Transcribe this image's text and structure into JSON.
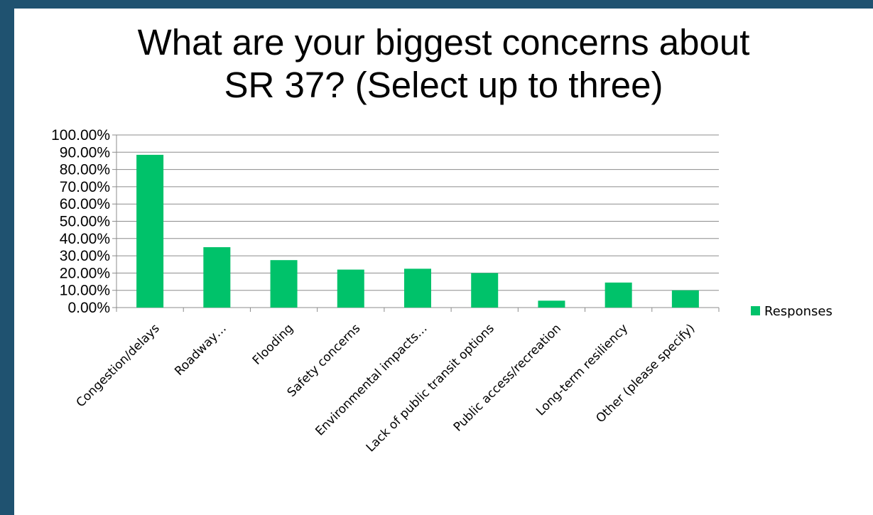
{
  "chart_data": {
    "type": "bar",
    "title_lines": [
      "What are your biggest concerns about",
      "SR 37? (Select up to three)"
    ],
    "categories": [
      "Congestion/delays",
      "Roadway…",
      "Flooding",
      "Safety concerns",
      "Environmental impacts…",
      "Lack of public transit options",
      "Public access/recreation",
      "Long-term resiliency",
      "Other (please specify)"
    ],
    "series": [
      {
        "name": "Responses",
        "color": "#00c26a",
        "values": [
          88.5,
          35.0,
          27.5,
          22.0,
          22.5,
          20.0,
          4.0,
          14.5,
          10.0
        ]
      }
    ],
    "yticks": [
      "0.00%",
      "10.00%",
      "20.00%",
      "30.00%",
      "40.00%",
      "50.00%",
      "60.00%",
      "70.00%",
      "80.00%",
      "90.00%",
      "100.00%"
    ],
    "ylim": [
      0,
      100
    ],
    "grid": true,
    "legend_position": "right"
  },
  "colors": {
    "background": "#1f5270",
    "panel": "#ffffff",
    "bar": "#00c26a",
    "gridline": "#8c8c8c"
  }
}
